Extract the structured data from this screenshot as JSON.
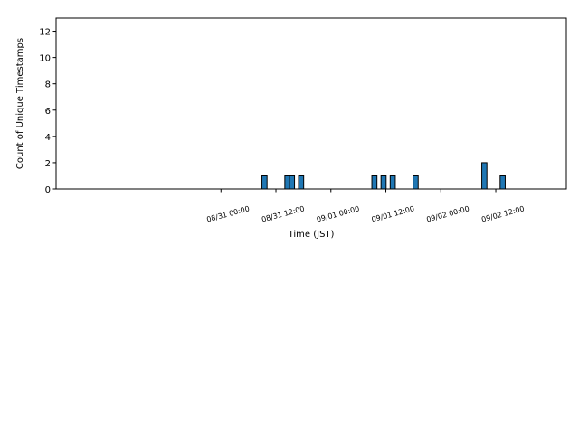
{
  "chart_data": {
    "type": "bar",
    "title": "",
    "xlabel": "Time (JST)",
    "ylabel": "Count of Unique Timestamps",
    "ylim": [
      0,
      13
    ],
    "yticks": [
      0,
      2,
      4,
      6,
      8,
      10,
      12
    ],
    "x_range_hours_from_0830_0000": [
      -12,
      99.4
    ],
    "xticks": [
      {
        "label": "08/31 00:00",
        "hour": 24
      },
      {
        "label": "08/31 12:00",
        "hour": 36
      },
      {
        "label": "09/01 00:00",
        "hour": 48
      },
      {
        "label": "09/01 12:00",
        "hour": 60
      },
      {
        "label": "09/02 00:00",
        "hour": 72
      },
      {
        "label": "09/02 12:00",
        "hour": 84
      }
    ],
    "bars": [
      {
        "hour": 33.5,
        "value": 1
      },
      {
        "hour": 38.5,
        "value": 1
      },
      {
        "hour": 39.5,
        "value": 1
      },
      {
        "hour": 41.5,
        "value": 1
      },
      {
        "hour": 57.5,
        "value": 1
      },
      {
        "hour": 59.5,
        "value": 1
      },
      {
        "hour": 61.5,
        "value": 1
      },
      {
        "hour": 66.5,
        "value": 1
      },
      {
        "hour": 81.5,
        "value": 2
      },
      {
        "hour": 85.5,
        "value": 1
      }
    ],
    "bar_color": "#1f77b4",
    "grid": false,
    "legend": "none"
  }
}
